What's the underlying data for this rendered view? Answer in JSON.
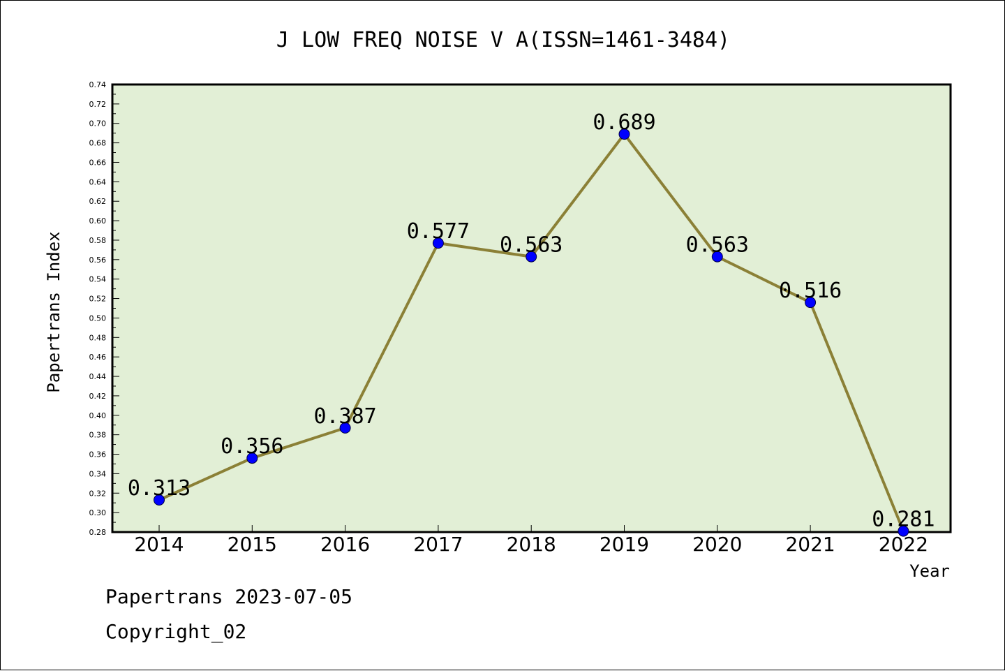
{
  "chart_data": {
    "type": "line",
    "title": "J LOW FREQ NOISE V A(ISSN=1461-3484)",
    "xlabel": "Year",
    "ylabel": "Papertrans Index",
    "categories": [
      "2014",
      "2015",
      "2016",
      "2017",
      "2018",
      "2019",
      "2020",
      "2021",
      "2022"
    ],
    "values": [
      0.313,
      0.356,
      0.387,
      0.577,
      0.563,
      0.689,
      0.563,
      0.516,
      0.281
    ],
    "value_labels": [
      "0.313",
      "0.356",
      "0.387",
      "0.577",
      "0.563",
      "0.689",
      "0.563",
      "0.516",
      "0.281"
    ],
    "ylim": [
      0.28,
      0.74
    ],
    "ytick_step": 0.02,
    "grid": false,
    "colors": {
      "plot_background": "#e2efd6",
      "line": "#8b8036",
      "marker": "#0000ff"
    }
  },
  "footer": {
    "date_text": "Papertrans 2023-07-05",
    "copyright_text": "Copyright_02"
  }
}
